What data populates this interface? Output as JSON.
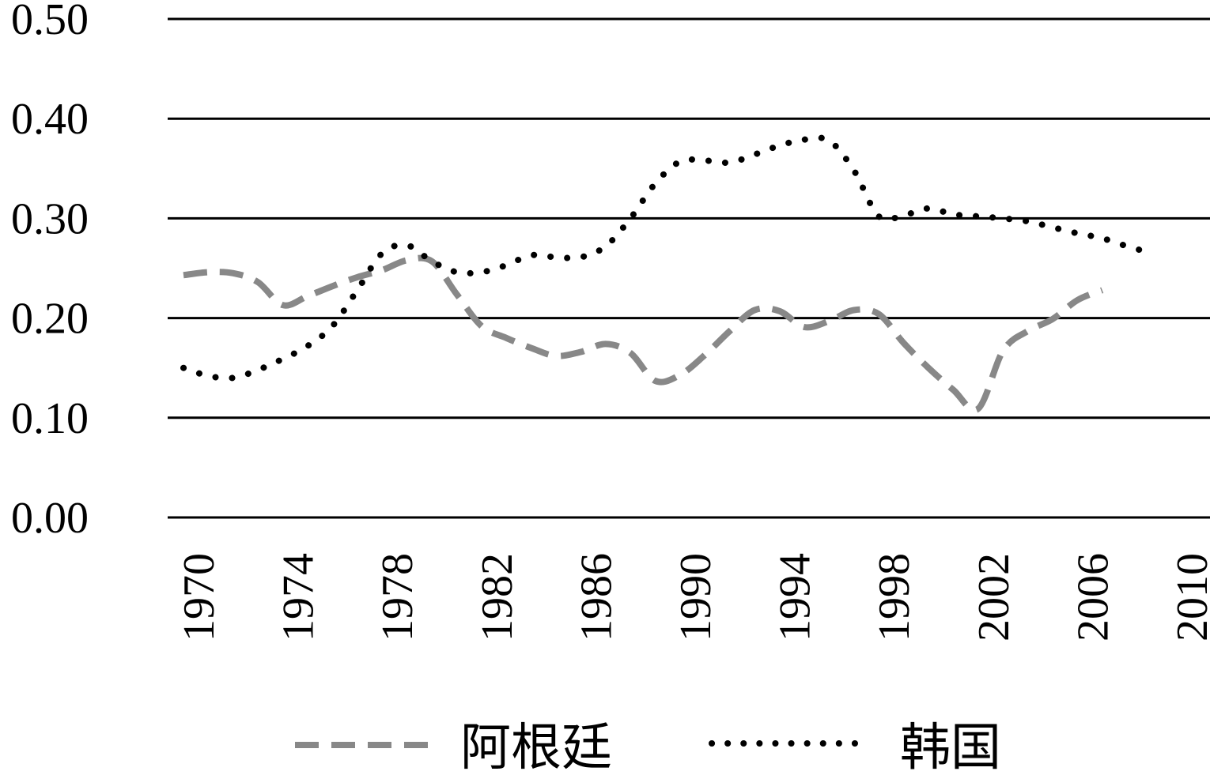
{
  "chart_data": {
    "type": "line",
    "x": [
      1970,
      1971,
      1972,
      1973,
      1974,
      1975,
      1976,
      1977,
      1978,
      1979,
      1980,
      1981,
      1982,
      1983,
      1984,
      1985,
      1986,
      1987,
      1988,
      1989,
      1990,
      1991,
      1992,
      1993,
      1994,
      1995,
      1996,
      1997,
      1998,
      1999,
      2000,
      2001,
      2002,
      2003,
      2004,
      2005,
      2006,
      2007,
      2008,
      2009
    ],
    "series": [
      {
        "name": "阿根廷",
        "style": "dashed",
        "color": "#888888",
        "values": [
          0.243,
          0.246,
          0.245,
          0.236,
          0.213,
          0.222,
          0.232,
          0.241,
          0.248,
          0.258,
          0.257,
          0.224,
          0.192,
          0.18,
          0.17,
          0.162,
          0.166,
          0.174,
          0.165,
          0.137,
          0.143,
          0.163,
          0.187,
          0.208,
          0.207,
          0.191,
          0.197,
          0.208,
          0.204,
          0.175,
          0.15,
          0.128,
          0.109,
          0.167,
          0.187,
          0.199,
          0.218,
          0.228,
          null,
          null
        ]
      },
      {
        "name": "韩国",
        "style": "dotted",
        "color": "#000000",
        "values": [
          0.15,
          0.142,
          0.14,
          0.148,
          0.159,
          0.172,
          0.192,
          0.228,
          0.265,
          0.273,
          0.257,
          0.246,
          0.246,
          0.253,
          0.263,
          0.261,
          0.261,
          0.272,
          0.3,
          0.335,
          0.357,
          0.358,
          0.356,
          0.364,
          0.373,
          0.379,
          0.378,
          0.348,
          0.302,
          0.303,
          0.31,
          0.304,
          0.302,
          0.3,
          0.297,
          0.291,
          0.285,
          0.28,
          0.272,
          0.265
        ]
      }
    ],
    "ylim": [
      0.0,
      0.5
    ],
    "yticks": [
      "0.00",
      "0.10",
      "0.20",
      "0.30",
      "0.40",
      "0.50"
    ],
    "yticks_values": [
      0.0,
      0.1,
      0.2,
      0.3,
      0.4,
      0.5
    ],
    "xticks": [
      "1970",
      "1974",
      "1978",
      "1982",
      "1986",
      "1990",
      "1994",
      "1998",
      "2002",
      "2006",
      "2010"
    ],
    "xticks_values": [
      1970,
      1974,
      1978,
      1982,
      1986,
      1990,
      1994,
      1998,
      2002,
      2006,
      2010
    ],
    "xlim": [
      1970,
      2010
    ],
    "grid": "horizontal",
    "legend_position": "bottom",
    "title": "",
    "xlabel": "",
    "ylabel": ""
  },
  "legend": {
    "items": [
      {
        "label": "阿根廷"
      },
      {
        "label": "韩国"
      }
    ]
  }
}
